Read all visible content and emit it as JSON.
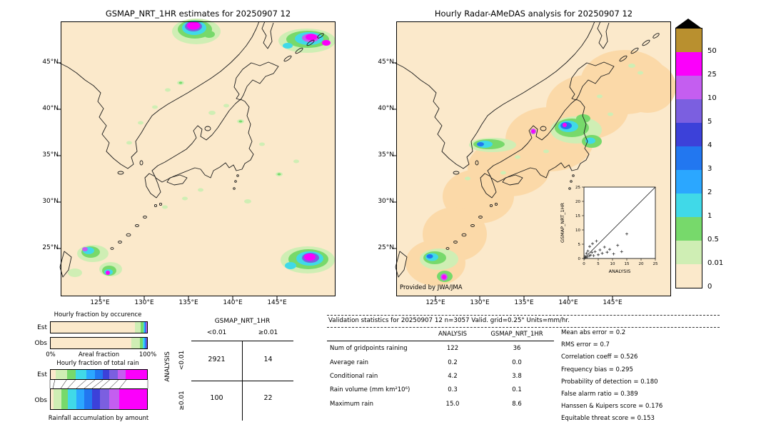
{
  "figure": {
    "left_map": {
      "title": "GSMAP_NRT_1HR estimates for 20250907 12"
    },
    "right_map": {
      "title": "Hourly Radar-AMeDAS analysis for 20250907 12",
      "credit": "Provided by JWA/JMA"
    },
    "map_axes": {
      "lat_ticks": [
        "45°N",
        "40°N",
        "35°N",
        "30°N",
        "25°N"
      ],
      "lon_ticks": [
        "125°E",
        "130°E",
        "135°E",
        "140°E",
        "145°E"
      ]
    }
  },
  "colorbar": {
    "unit": "mm/hr",
    "labels": [
      "50",
      "25",
      "10",
      "5",
      "4",
      "3",
      "2",
      "1",
      "0.5",
      "0.01",
      "0"
    ],
    "colors": [
      "#b9902f",
      "#fb00fb",
      "#c45ef0",
      "#7b5fe0",
      "#3c41d9",
      "#2277f0",
      "#2ba7ff",
      "#40d9e8",
      "#77d96b",
      "#cfeeb4",
      "#fbe9cb"
    ]
  },
  "chart_data": [
    {
      "type": "bar",
      "name": "hourly-fraction-by-occurrence",
      "title": "Hourly fraction by occurence",
      "orientation": "horizontal-stacked",
      "xlabel": "Areal fraction",
      "xlim": [
        "0%",
        "100%"
      ],
      "bin_edges_mm_hr": [
        0,
        0.01,
        0.5,
        1,
        2,
        3,
        4,
        5,
        10,
        25,
        50
      ],
      "colors": [
        "#fbe9cb",
        "#cfeeb4",
        "#77d96b",
        "#40d9e8",
        "#2ba7ff",
        "#2277f0",
        "#3c41d9",
        "#7b5fe0",
        "#c45ef0",
        "#fb00fb"
      ],
      "series": [
        {
          "name": "Est",
          "values": [
            87.5,
            6,
            2.6,
            1.2,
            0.7,
            0.5,
            0.4,
            0.4,
            0.4,
            0.3
          ]
        },
        {
          "name": "Obs",
          "values": [
            84,
            8.5,
            3.2,
            1.6,
            0.9,
            0.6,
            0.5,
            0.4,
            0.2,
            0.1
          ]
        }
      ]
    },
    {
      "type": "bar",
      "name": "hourly-fraction-of-total-rain",
      "title": "Hourly fraction of total rain",
      "xlabel": "Rainfall accumulation by amount",
      "colors": [
        "#fbe9cb",
        "#cfeeb4",
        "#77d96b",
        "#40d9e8",
        "#2ba7ff",
        "#2277f0",
        "#3c41d9",
        "#7b5fe0",
        "#c45ef0",
        "#fb00fb"
      ],
      "series": [
        {
          "name": "Est",
          "values": [
            5,
            12,
            9,
            11,
            9,
            8,
            7,
            9,
            8,
            22
          ]
        },
        {
          "name": "Obs",
          "values": [
            3,
            8,
            7,
            9,
            8,
            8,
            8,
            10,
            10,
            29
          ]
        }
      ]
    },
    {
      "type": "scatter",
      "name": "gsmap-vs-analysis-inset",
      "xlabel": "ANALYSIS",
      "ylabel": "GSMAP_NRT_1HR",
      "xlim": [
        0,
        25
      ],
      "ylim": [
        0,
        25
      ],
      "ticks": [
        0,
        5,
        10,
        15,
        20,
        25
      ],
      "marker": "+",
      "identity_line": true,
      "points": [
        [
          0.2,
          0.1
        ],
        [
          0.4,
          0.8
        ],
        [
          0.6,
          0.3
        ],
        [
          0.9,
          1.8
        ],
        [
          1.1,
          0.5
        ],
        [
          1.4,
          2.6
        ],
        [
          1.8,
          0.9
        ],
        [
          2,
          4.2
        ],
        [
          2.3,
          1.2
        ],
        [
          2.8,
          2.1
        ],
        [
          3,
          5.2
        ],
        [
          3.4,
          1
        ],
        [
          3.9,
          2.4
        ],
        [
          4.4,
          6.1
        ],
        [
          5,
          1.3
        ],
        [
          5.6,
          3
        ],
        [
          6.4,
          1.8
        ],
        [
          7.2,
          4
        ],
        [
          8.1,
          2.2
        ],
        [
          9,
          3.2
        ],
        [
          10.4,
          1.6
        ],
        [
          11.8,
          4.6
        ],
        [
          13.2,
          2.4
        ],
        [
          15,
          8.6
        ]
      ]
    },
    {
      "type": "table",
      "name": "contingency-table",
      "col_header": "GSMAP_NRT_1HR",
      "row_header": "ANALYSIS",
      "col_labels": [
        "<0.01",
        "≥0.01"
      ],
      "row_labels": [
        "<0.01",
        "≥0.01"
      ],
      "values": [
        [
          "2921",
          "14"
        ],
        [
          "100",
          "22"
        ]
      ]
    },
    {
      "type": "table",
      "name": "validation-statistics",
      "title": "Validation statistics for 20250907 12  n=3057 Valid. grid=0.25° Units=mm/hr.",
      "columns": [
        "ANALYSIS",
        "GSMAP_NRT_1HR"
      ],
      "rows": [
        {
          "label": "Num of gridpoints raining",
          "analysis": "122",
          "gsmap": "36"
        },
        {
          "label": "Average rain",
          "analysis": "0.2",
          "gsmap": "0.0"
        },
        {
          "label": "Conditional rain",
          "analysis": "4.2",
          "gsmap": "3.8"
        },
        {
          "label": "Rain volume (mm km²10⁶)",
          "analysis": "0.3",
          "gsmap": "0.1"
        },
        {
          "label": "Maximum rain",
          "analysis": "15.0",
          "gsmap": "8.6"
        }
      ],
      "metrics": [
        "Mean abs error =  0.2",
        "RMS error =  0.7",
        "Correlation coeff =  0.526",
        "Frequency bias =  0.295",
        "Probability of detection =  0.180",
        "False alarm ratio =  0.389",
        "Hanssen & Kuipers score =  0.176",
        "Equitable threat score =  0.153"
      ]
    }
  ]
}
